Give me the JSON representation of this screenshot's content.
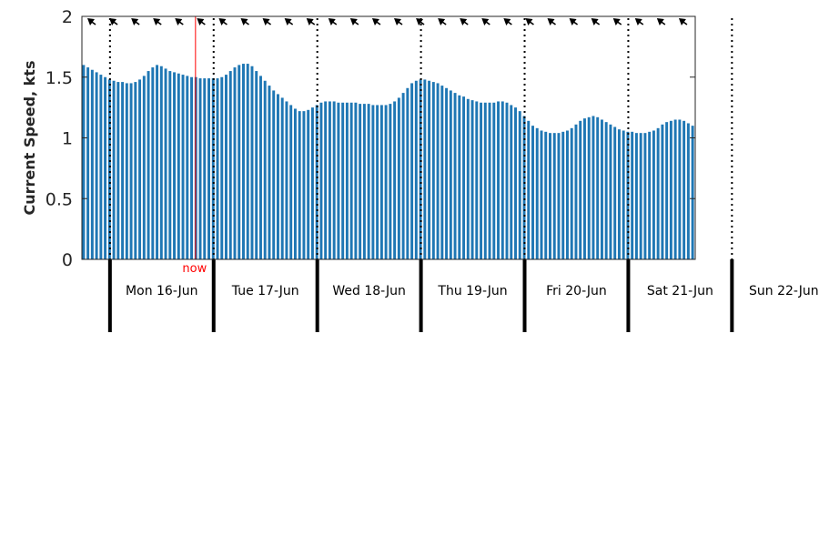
{
  "chart_data": {
    "type": "bar",
    "ylabel": "Current Speed, kts",
    "ylim": [
      0,
      2
    ],
    "yticks": [
      0,
      0.5,
      1,
      1.5,
      2
    ],
    "ytick_labels": [
      "0",
      "0.5",
      "1",
      "1.5",
      "2"
    ],
    "grid": false,
    "bar_color": "#1f77b4",
    "now_color": "#ff0000",
    "now_label": "now",
    "now_index": 26,
    "day_labels": [
      "Mon 16-Jun",
      "Tue 17-Jun",
      "Wed 18-Jun",
      "Thu 19-Jun",
      "Fri 20-Jun",
      "Sat 21-Jun",
      "Sun 22-Jun"
    ],
    "bars_per_day": 24,
    "first_day_offset": 6.5,
    "arrow_count": 28,
    "arrow_direction": "northwest",
    "values": [
      1.6,
      1.58,
      1.56,
      1.54,
      1.52,
      1.5,
      1.48,
      1.47,
      1.46,
      1.46,
      1.45,
      1.45,
      1.46,
      1.48,
      1.51,
      1.55,
      1.58,
      1.6,
      1.59,
      1.57,
      1.55,
      1.54,
      1.53,
      1.52,
      1.51,
      1.5,
      1.5,
      1.49,
      1.49,
      1.49,
      1.49,
      1.49,
      1.5,
      1.52,
      1.55,
      1.58,
      1.6,
      1.61,
      1.61,
      1.59,
      1.55,
      1.51,
      1.47,
      1.43,
      1.39,
      1.36,
      1.33,
      1.3,
      1.27,
      1.24,
      1.22,
      1.22,
      1.23,
      1.25,
      1.27,
      1.29,
      1.3,
      1.3,
      1.3,
      1.29,
      1.29,
      1.29,
      1.29,
      1.29,
      1.28,
      1.28,
      1.28,
      1.27,
      1.27,
      1.27,
      1.27,
      1.28,
      1.3,
      1.33,
      1.37,
      1.41,
      1.45,
      1.47,
      1.48,
      1.48,
      1.47,
      1.46,
      1.45,
      1.43,
      1.41,
      1.39,
      1.37,
      1.35,
      1.34,
      1.32,
      1.31,
      1.3,
      1.29,
      1.29,
      1.29,
      1.29,
      1.3,
      1.3,
      1.29,
      1.27,
      1.25,
      1.22,
      1.18,
      1.14,
      1.1,
      1.08,
      1.06,
      1.05,
      1.04,
      1.04,
      1.04,
      1.05,
      1.06,
      1.08,
      1.11,
      1.14,
      1.16,
      1.17,
      1.18,
      1.17,
      1.15,
      1.13,
      1.11,
      1.09,
      1.07,
      1.06,
      1.05,
      1.05,
      1.04,
      1.04,
      1.04,
      1.05,
      1.06,
      1.08,
      1.11,
      1.13,
      1.14,
      1.15,
      1.15,
      1.14,
      1.12,
      1.1
    ]
  }
}
